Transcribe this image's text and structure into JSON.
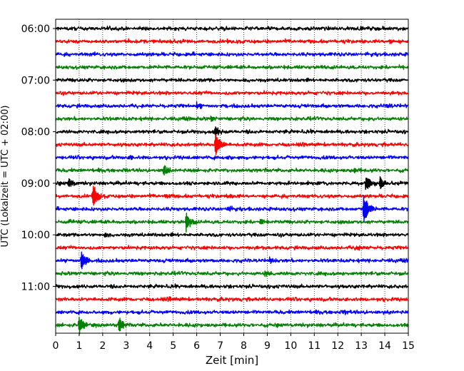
{
  "chart_data": {
    "type": "line",
    "title": "",
    "xlabel": "Zeit  [min]",
    "ylabel": "UTC (Lokalzeit = UTC + 02:00)",
    "xlim": [
      0,
      15
    ],
    "x_ticks": [
      "0",
      "1",
      "2",
      "3",
      "4",
      "5",
      "6",
      "7",
      "8",
      "9",
      "10",
      "11",
      "12",
      "13",
      "14",
      "15"
    ],
    "y_tick_labels": [
      "06:00",
      "07:00",
      "08:00",
      "09:00",
      "10:00",
      "11:00"
    ],
    "grid": "vertical dotted at each minute",
    "legend": "none",
    "trace_interval_minutes": 15,
    "traces": [
      {
        "start": "06:00",
        "color": "#000000",
        "events": [
          [
            2.2,
            0.25
          ]
        ]
      },
      {
        "start": "06:15",
        "color": "#ff0000",
        "events": [
          [
            3.1,
            0.3
          ],
          [
            14.2,
            0.35
          ]
        ]
      },
      {
        "start": "06:30",
        "color": "#0000ff",
        "events": [
          [
            1.6,
            0.2
          ]
        ]
      },
      {
        "start": "06:45",
        "color": "#008000",
        "events": []
      },
      {
        "start": "07:00",
        "color": "#000000",
        "events": [
          [
            9.8,
            0.25
          ]
        ]
      },
      {
        "start": "07:15",
        "color": "#ff0000",
        "events": []
      },
      {
        "start": "07:30",
        "color": "#0000ff",
        "events": [
          [
            6.0,
            0.5
          ],
          [
            14.1,
            0.25
          ]
        ]
      },
      {
        "start": "07:45",
        "color": "#008000",
        "events": [
          [
            6.6,
            0.3
          ],
          [
            13.3,
            0.2
          ]
        ]
      },
      {
        "start": "08:00",
        "color": "#000000",
        "events": [
          [
            6.8,
            0.8
          ]
        ]
      },
      {
        "start": "08:15",
        "color": "#ff0000",
        "events": [
          [
            6.8,
            2.0
          ]
        ]
      },
      {
        "start": "08:30",
        "color": "#0000ff",
        "events": [
          [
            3.2,
            0.3
          ],
          [
            7.3,
            0.3
          ]
        ]
      },
      {
        "start": "08:45",
        "color": "#008000",
        "events": [
          [
            4.6,
            0.9
          ],
          [
            12.7,
            0.35
          ]
        ]
      },
      {
        "start": "09:00",
        "color": "#000000",
        "events": [
          [
            0.55,
            0.9
          ],
          [
            13.2,
            1.2
          ],
          [
            13.8,
            1.0
          ]
        ]
      },
      {
        "start": "09:15",
        "color": "#ff0000",
        "events": [
          [
            1.6,
            1.9
          ],
          [
            4.7,
            0.3
          ],
          [
            7.4,
            0.3
          ]
        ]
      },
      {
        "start": "09:30",
        "color": "#0000ff",
        "events": [
          [
            13.1,
            2.4
          ],
          [
            7.3,
            0.35
          ]
        ]
      },
      {
        "start": "09:45",
        "color": "#008000",
        "events": [
          [
            5.55,
            1.6
          ],
          [
            8.7,
            0.6
          ],
          [
            0.6,
            0.3
          ]
        ]
      },
      {
        "start": "10:00",
        "color": "#000000",
        "events": [
          [
            2.1,
            0.3
          ]
        ]
      },
      {
        "start": "10:15",
        "color": "#ff0000",
        "events": [
          [
            12.8,
            0.3
          ]
        ]
      },
      {
        "start": "10:30",
        "color": "#0000ff",
        "events": [
          [
            1.1,
            1.5
          ],
          [
            9.1,
            0.35
          ]
        ]
      },
      {
        "start": "10:45",
        "color": "#008000",
        "events": [
          [
            8.9,
            0.4
          ]
        ]
      },
      {
        "start": "11:00",
        "color": "#000000",
        "events": []
      },
      {
        "start": "11:15",
        "color": "#ff0000",
        "events": [
          [
            4.8,
            0.35
          ]
        ]
      },
      {
        "start": "11:30",
        "color": "#0000ff",
        "events": [
          [
            12.3,
            0.25
          ]
        ]
      },
      {
        "start": "11:45",
        "color": "#008000",
        "events": [
          [
            1.0,
            1.5
          ],
          [
            2.7,
            1.3
          ],
          [
            1.6,
            0.3
          ]
        ]
      }
    ]
  }
}
